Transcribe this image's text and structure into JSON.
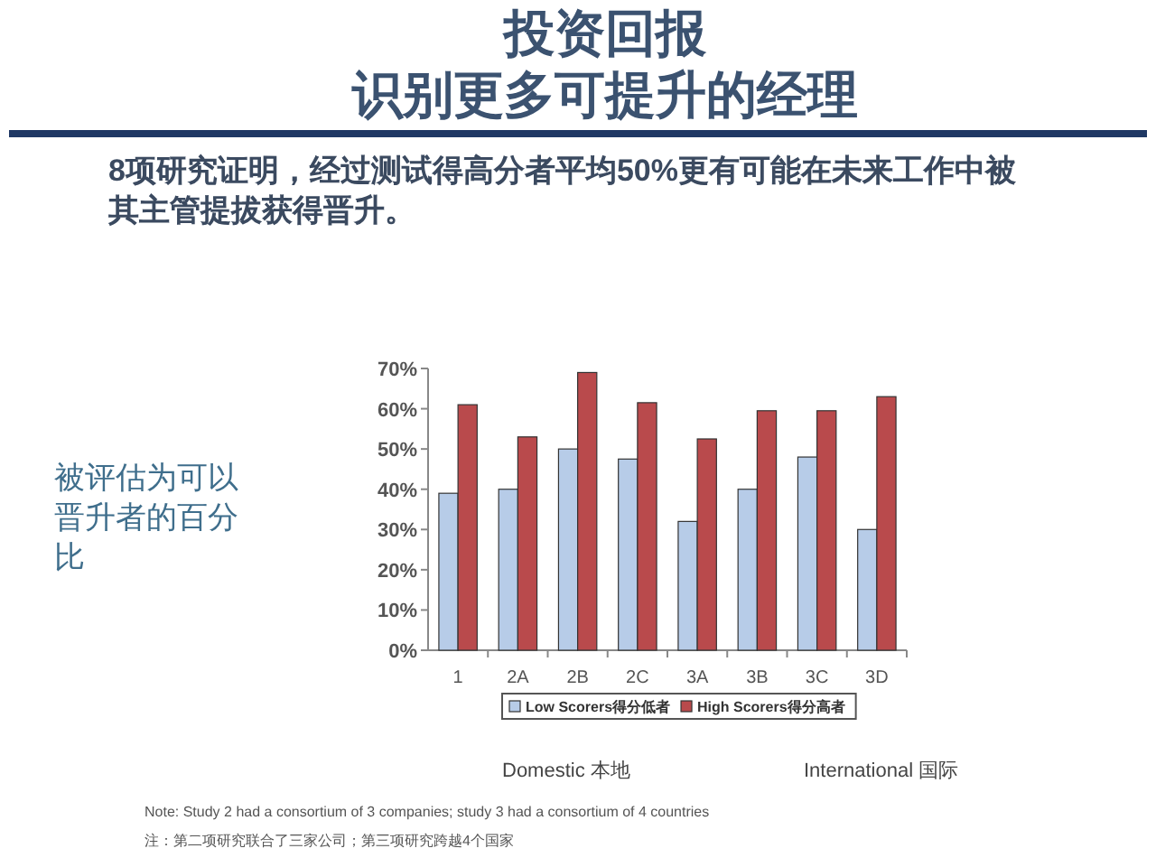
{
  "chart_data": {
    "type": "bar",
    "title": "投资回报",
    "subtitle": "识别更多可提升的经理",
    "ylabel": "被评估为可以晋升者的百分比",
    "categories": [
      "1",
      "2A",
      "2B",
      "2C",
      "3A",
      "3B",
      "3C",
      "3D"
    ],
    "series": [
      {
        "name": "Low Scorers得分低者",
        "color": "#b7cce8",
        "values": [
          39,
          40,
          50,
          47.5,
          32,
          40,
          48,
          30
        ]
      },
      {
        "name": "High Scorers得分高者",
        "color": "#b94a4c",
        "values": [
          61,
          53,
          69,
          61.5,
          52.5,
          59.5,
          59.5,
          63
        ]
      }
    ],
    "ylim": [
      0,
      70
    ],
    "yticks": [
      {
        "value": 0,
        "label": "0%"
      },
      {
        "value": 10,
        "label": "10%"
      },
      {
        "value": 20,
        "label": "20%"
      },
      {
        "value": 30,
        "label": "30%"
      },
      {
        "value": 40,
        "label": "40%"
      },
      {
        "value": 50,
        "label": "50%"
      },
      {
        "value": 60,
        "label": "60%"
      },
      {
        "value": 70,
        "label": "70%"
      }
    ],
    "legend": "bottom",
    "annotations": [
      "8项研究证明，经过测试得高分者平均50%更有可能在未来工作中被其主管提拔获得晋升。",
      "Domestic 本地",
      "International 国际",
      "Note: Study 2 had a consortium of 3 companies; study 3 had a consortium of 4 countries",
      "注：第二项研究联合了三家公司；第三项研究跨越4个国家"
    ]
  }
}
